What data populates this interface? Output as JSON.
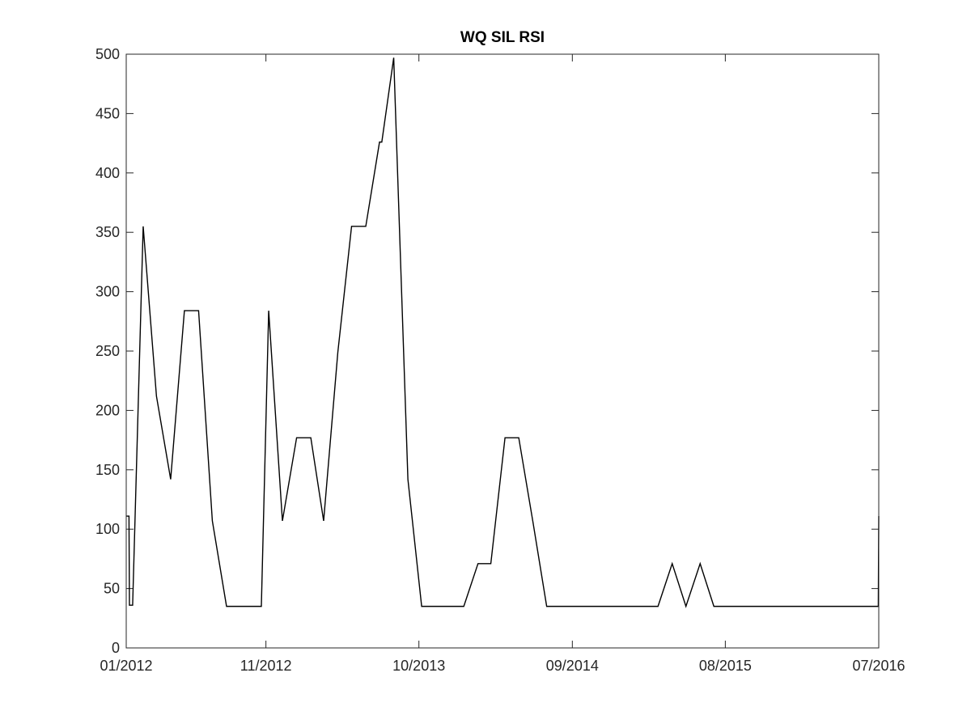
{
  "chart_data": {
    "type": "line",
    "title": "WQ SIL RSI",
    "xlabel": "",
    "ylabel": "",
    "ylim": [
      0,
      500
    ],
    "xlim": [
      "2012-01",
      "2016-07"
    ],
    "grid": false,
    "yticks": [
      0,
      50,
      100,
      150,
      200,
      250,
      300,
      350,
      400,
      450,
      500
    ],
    "xticks": [
      "01/2012",
      "11/2012",
      "10/2013",
      "09/2014",
      "08/2015",
      "07/2016"
    ],
    "line_color": "#000000",
    "series": [
      {
        "x": [
          "2012-01-01",
          "2012-01-07",
          "2012-01-08",
          "2012-01-15",
          "2012-02-07",
          "2012-03-07",
          "2012-04-07",
          "2012-05-07",
          "2012-06-07",
          "2012-07-07",
          "2012-08-07",
          "2012-09-07",
          "2012-10-07",
          "2012-10-22",
          "2012-11-07",
          "2012-12-07",
          "2013-01-07",
          "2013-02-07",
          "2013-03-07",
          "2013-04-07",
          "2013-05-07",
          "2013-06-07",
          "2013-07-07",
          "2013-07-12",
          "2013-08-07",
          "2013-09-07",
          "2013-10-07",
          "2013-11-07",
          "2013-12-07",
          "2014-01-07",
          "2014-02-07",
          "2014-03-07",
          "2014-04-07",
          "2014-05-07",
          "2014-06-07",
          "2014-07-07",
          "2014-08-07",
          "2014-09-07",
          "2014-10-07",
          "2014-11-07",
          "2014-12-07",
          "2015-01-07",
          "2015-02-07",
          "2015-03-07",
          "2015-04-07",
          "2015-05-07",
          "2015-06-07",
          "2015-07-07",
          "2015-08-07",
          "2015-09-07",
          "2015-10-07",
          "2015-11-07",
          "2015-12-07",
          "2016-01-07",
          "2016-02-07",
          "2016-03-07",
          "2016-04-07",
          "2016-05-07",
          "2016-06-07",
          "2016-06-30",
          "2016-07-01"
        ],
        "y": [
          111,
          111,
          36,
          36,
          355,
          212,
          142,
          284,
          284,
          107,
          35,
          35,
          35,
          35,
          284,
          107,
          177,
          177,
          107,
          249,
          355,
          355,
          426,
          426,
          497,
          142,
          35,
          35,
          35,
          35,
          71,
          71,
          177,
          177,
          106,
          35,
          35,
          35,
          35,
          35,
          35,
          35,
          35,
          35,
          71,
          35,
          71,
          35,
          35,
          35,
          35,
          35,
          35,
          35,
          35,
          35,
          35,
          35,
          35,
          35,
          111
        ]
      }
    ]
  }
}
